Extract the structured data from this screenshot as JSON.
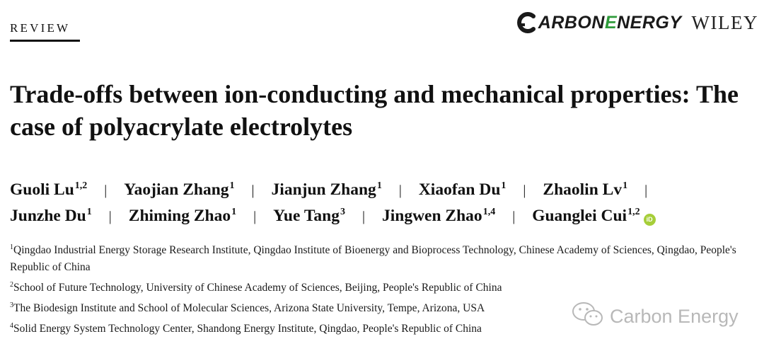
{
  "header": {
    "section_label": "REVIEW",
    "journal_logo_text": {
      "part1": "ARBON ",
      "part2": "E",
      "part3": "NERGY"
    },
    "publisher": "WILEY"
  },
  "title": "Trade-offs between ion-conducting and mechanical properties: The case of polyacrylate electrolytes",
  "authors": [
    {
      "name": "Guoli Lu",
      "affil": "1,2"
    },
    {
      "name": "Yaojian Zhang",
      "affil": "1"
    },
    {
      "name": "Jianjun Zhang",
      "affil": "1"
    },
    {
      "name": "Xiaofan Du",
      "affil": "1"
    },
    {
      "name": "Zhaolin Lv",
      "affil": "1"
    },
    {
      "name": "Junzhe Du",
      "affil": "1"
    },
    {
      "name": "Zhiming Zhao",
      "affil": "1"
    },
    {
      "name": "Yue Tang",
      "affil": "3"
    },
    {
      "name": "Jingwen Zhao",
      "affil": "1,4"
    },
    {
      "name": "Guanglei Cui",
      "affil": "1,2"
    }
  ],
  "separator": "|",
  "orcid_icon": "orcid-icon",
  "affiliations": [
    {
      "num": "1",
      "text": "Qingdao Industrial Energy Storage Research Institute, Qingdao Institute of Bioenergy and Bioprocess Technology, Chinese Academy of Sciences, Qingdao, People's Republic of China"
    },
    {
      "num": "2",
      "text": "School of Future Technology, University of Chinese Academy of Sciences, Beijing, People's Republic of China"
    },
    {
      "num": "3",
      "text": "The Biodesign Institute and School of Molecular Sciences, Arizona State University, Tempe, Arizona, USA"
    },
    {
      "num": "4",
      "text": "Solid Energy System Technology Center, Shandong Energy Institute, Qingdao, People's Republic of China"
    }
  ],
  "watermark": {
    "text": "Carbon Energy",
    "icon": "wechat-icon"
  },
  "colors": {
    "brand_green": "#2e9b3a",
    "orcid_green": "#a6ce39",
    "text": "#111111",
    "watermark": "#b8b8b8"
  }
}
